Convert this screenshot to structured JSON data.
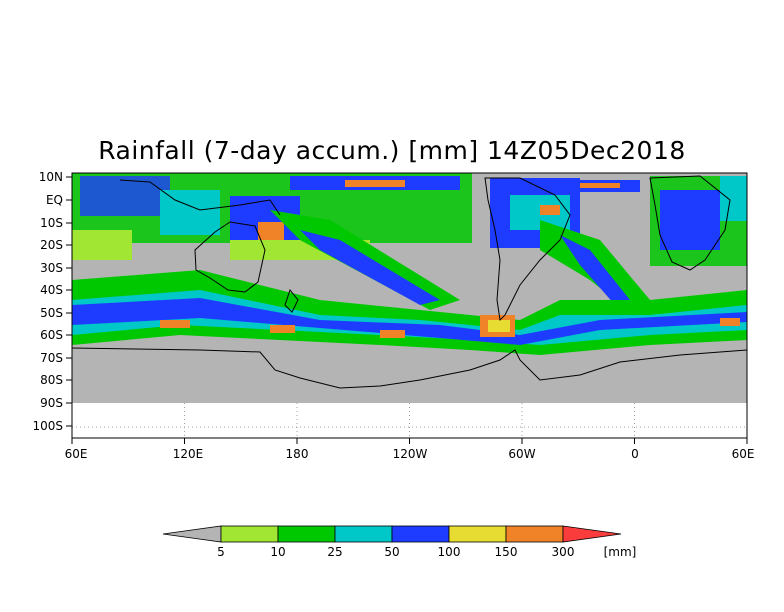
{
  "title": "Rainfall (7-day accum.) [mm] 14Z05Dec2018",
  "lat_labels": [
    "10N",
    "EQ",
    "10S",
    "20S",
    "30S",
    "40S",
    "50S",
    "60S",
    "70S",
    "80S",
    "90S",
    "100S"
  ],
  "lon_labels": [
    "60E",
    "120E",
    "180",
    "120W",
    "60W",
    "0",
    "60E"
  ],
  "map_extent": {
    "lon_start": "60E",
    "lon_end": "60E (wraps 360°)",
    "lat_top": 10,
    "lat_bottom": -100,
    "data_bottom": -90
  },
  "colors": {
    "no_rain": "#b4b4b4",
    "bins": [
      "#a0e632",
      "#00c800",
      "#00c8c8",
      "#1e3cff",
      "#e6dc32",
      "#f08228",
      "#fa3c3c"
    ]
  },
  "legend": {
    "ticks": [
      "5",
      "10",
      "25",
      "50",
      "100",
      "150",
      "300"
    ],
    "unit": "[mm]",
    "under_color": "#b4b4b4",
    "over_color": "#fa3c3c"
  }
}
